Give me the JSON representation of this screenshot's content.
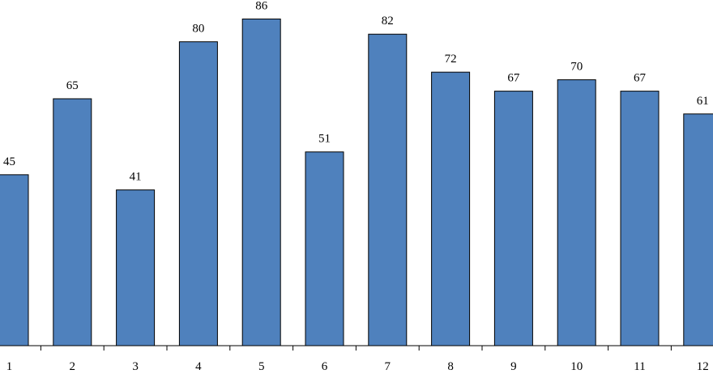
{
  "chart_data": {
    "type": "bar",
    "categories": [
      "1",
      "2",
      "3",
      "4",
      "5",
      "6",
      "7",
      "8",
      "9",
      "10",
      "11",
      "12"
    ],
    "values": [
      45,
      65,
      41,
      80,
      86,
      51,
      82,
      72,
      67,
      70,
      67,
      61
    ],
    "color": "#4f81bd",
    "ylim": [
      0,
      91
    ]
  }
}
